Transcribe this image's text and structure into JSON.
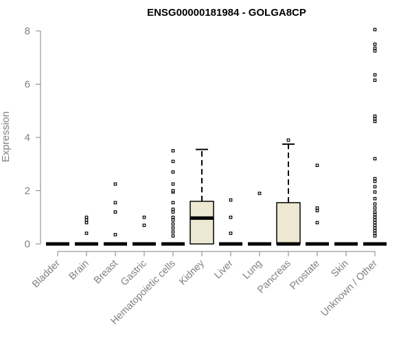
{
  "chart_data": {
    "type": "box",
    "title": "ENSG00000181984 - GOLGA8CP",
    "xlabel": "",
    "ylabel": "Expression",
    "ylim": [
      0,
      8
    ],
    "yticks": [
      "0",
      "2",
      "4",
      "6",
      "8"
    ],
    "grid": false,
    "box_fill": "#EDE8D1",
    "categories": [
      "Bladder",
      "Brain",
      "Breast",
      "Gastric",
      "Hematopoietic cells",
      "Kidney",
      "Liver",
      "Lung",
      "Pancreas",
      "Prostate",
      "Skin",
      "Unknown / Other"
    ],
    "boxes": [
      {
        "q1": 0,
        "median": 0,
        "q3": 0,
        "whisker_low": 0,
        "whisker_high": 0,
        "outliers": []
      },
      {
        "q1": 0,
        "median": 0,
        "q3": 0,
        "whisker_low": 0,
        "whisker_high": 0,
        "outliers": [
          0.4,
          0.8,
          0.9,
          1.0
        ]
      },
      {
        "q1": 0,
        "median": 0,
        "q3": 0,
        "whisker_low": 0,
        "whisker_high": 0,
        "outliers": [
          0.35,
          1.2,
          1.55,
          2.25
        ]
      },
      {
        "q1": 0,
        "median": 0,
        "q3": 0,
        "whisker_low": 0,
        "whisker_high": 0,
        "outliers": [
          0.7,
          1.0
        ]
      },
      {
        "q1": 0,
        "median": 0,
        "q3": 0,
        "whisker_low": 0,
        "whisker_high": 0,
        "outliers": [
          0.3,
          0.45,
          0.6,
          0.75,
          0.9,
          1.0,
          1.2,
          1.3,
          1.55,
          1.95,
          2.0,
          2.25,
          2.7,
          3.1,
          3.5
        ]
      },
      {
        "q1": 0,
        "median": 0.97,
        "q3": 1.6,
        "whisker_low": 0,
        "whisker_high": 3.55,
        "outliers": []
      },
      {
        "q1": 0,
        "median": 0,
        "q3": 0,
        "whisker_low": 0,
        "whisker_high": 0,
        "outliers": [
          0.4,
          1.0,
          1.65
        ]
      },
      {
        "q1": 0,
        "median": 0,
        "q3": 0,
        "whisker_low": 0,
        "whisker_high": 0,
        "outliers": [
          1.9
        ]
      },
      {
        "q1": 0,
        "median": 0,
        "q3": 1.55,
        "whisker_low": 0,
        "whisker_high": 3.75,
        "outliers": [
          3.9
        ]
      },
      {
        "q1": 0,
        "median": 0,
        "q3": 0,
        "whisker_low": 0,
        "whisker_high": 0,
        "outliers": [
          0.8,
          1.25,
          1.35,
          2.95
        ]
      },
      {
        "q1": 0,
        "median": 0,
        "q3": 0,
        "whisker_low": 0,
        "whisker_high": 0,
        "outliers": []
      },
      {
        "q1": 0,
        "median": 0,
        "q3": 0,
        "whisker_low": 0,
        "whisker_high": 0,
        "outliers": [
          0.3,
          0.4,
          0.5,
          0.6,
          0.7,
          0.8,
          0.9,
          1.0,
          1.1,
          1.2,
          1.35,
          1.5,
          1.7,
          1.95,
          2.15,
          2.35,
          2.45,
          3.2,
          4.6,
          4.7,
          4.8,
          6.15,
          6.35,
          7.25,
          7.35,
          7.5,
          8.05
        ]
      }
    ]
  }
}
